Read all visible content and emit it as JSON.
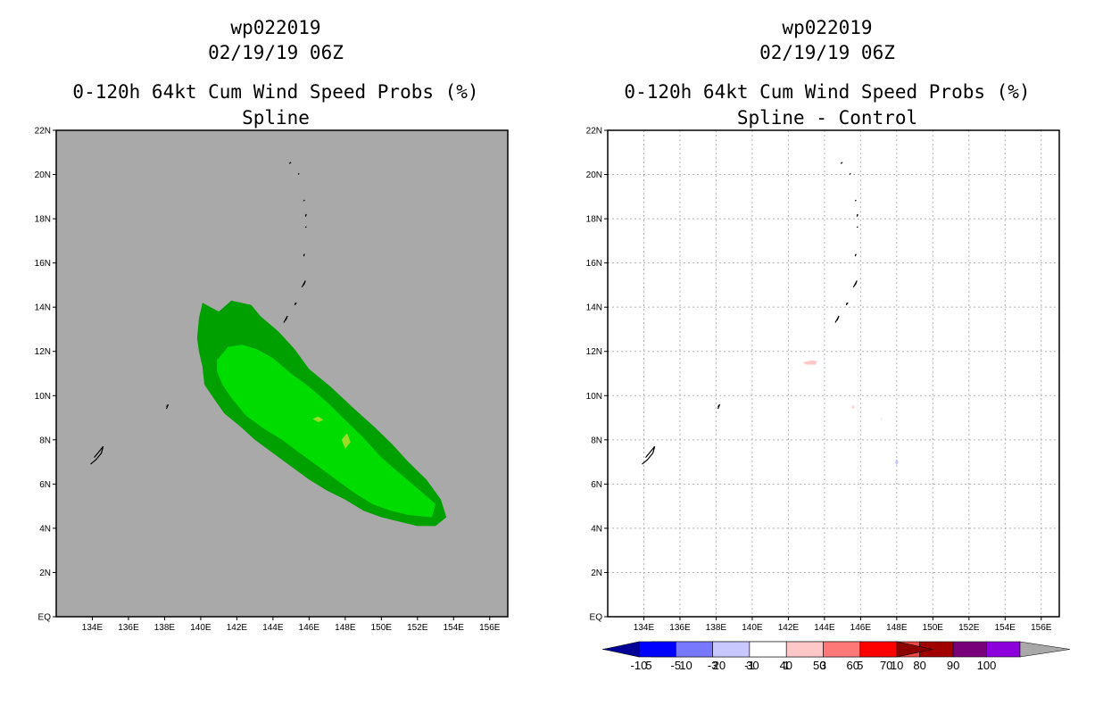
{
  "chart_data": [
    {
      "type": "contour-map",
      "title": "wp022019",
      "date": "02/19/19 06Z",
      "subtitle": "0-120h 64kt Cum Wind Speed Probs (%)",
      "method": "Spline",
      "xlim": [
        132,
        157
      ],
      "ylim": [
        0,
        22
      ],
      "xticks": [
        "134E",
        "136E",
        "138E",
        "140E",
        "142E",
        "144E",
        "146E",
        "148E",
        "150E",
        "152E",
        "154E",
        "156E"
      ],
      "xtick_values": [
        134,
        136,
        138,
        140,
        142,
        144,
        146,
        148,
        150,
        152,
        154,
        156
      ],
      "yticks": [
        "EQ",
        "2N",
        "4N",
        "6N",
        "8N",
        "10N",
        "12N",
        "14N",
        "16N",
        "18N",
        "20N",
        "22N"
      ],
      "ytick_values": [
        0,
        2,
        4,
        6,
        8,
        10,
        12,
        14,
        16,
        18,
        20,
        22
      ],
      "grid": false,
      "background": "#a9a9a9",
      "contours": [
        {
          "level": "5-10",
          "color": "#00a000",
          "points": [
            [
              139.8,
              12.6
            ],
            [
              139.9,
              13.5
            ],
            [
              140.1,
              14.2
            ],
            [
              141.0,
              13.8
            ],
            [
              141.7,
              14.3
            ],
            [
              142.8,
              14.1
            ],
            [
              143.3,
              13.6
            ],
            [
              144.3,
              12.9
            ],
            [
              145.2,
              12.1
            ],
            [
              146.0,
              11.2
            ],
            [
              147.2,
              10.4
            ],
            [
              148.5,
              9.4
            ],
            [
              149.6,
              8.6
            ],
            [
              150.6,
              7.8
            ],
            [
              151.5,
              7.0
            ],
            [
              152.5,
              6.2
            ],
            [
              153.3,
              5.3
            ],
            [
              153.6,
              4.5
            ],
            [
              153.0,
              4.1
            ],
            [
              152.0,
              4.1
            ],
            [
              151.0,
              4.3
            ],
            [
              150.0,
              4.5
            ],
            [
              149.0,
              4.8
            ],
            [
              148.0,
              5.3
            ],
            [
              147.0,
              5.7
            ],
            [
              146.0,
              6.2
            ],
            [
              145.0,
              6.8
            ],
            [
              144.0,
              7.4
            ],
            [
              143.0,
              8.0
            ],
            [
              142.2,
              8.6
            ],
            [
              141.3,
              9.2
            ],
            [
              140.7,
              9.9
            ],
            [
              140.2,
              10.5
            ],
            [
              140.1,
              11.3
            ],
            [
              139.9,
              12.0
            ]
          ]
        },
        {
          "level": "10-20",
          "color": "#00dc00",
          "points": [
            [
              140.9,
              11.6
            ],
            [
              141.5,
              12.2
            ],
            [
              142.3,
              12.3
            ],
            [
              143.1,
              12.1
            ],
            [
              144.0,
              11.7
            ],
            [
              145.0,
              11.0
            ],
            [
              146.0,
              10.4
            ],
            [
              147.0,
              9.7
            ],
            [
              148.0,
              8.9
            ],
            [
              149.0,
              8.1
            ],
            [
              150.0,
              7.2
            ],
            [
              151.0,
              6.5
            ],
            [
              152.0,
              5.8
            ],
            [
              153.0,
              5.1
            ],
            [
              152.8,
              4.5
            ],
            [
              151.5,
              4.6
            ],
            [
              150.5,
              4.8
            ],
            [
              149.5,
              5.1
            ],
            [
              148.5,
              5.6
            ],
            [
              147.5,
              6.2
            ],
            [
              146.5,
              6.8
            ],
            [
              145.5,
              7.4
            ],
            [
              144.5,
              8.0
            ],
            [
              143.5,
              8.5
            ],
            [
              142.5,
              9.1
            ],
            [
              141.7,
              9.9
            ],
            [
              141.2,
              10.5
            ],
            [
              140.9,
              11.1
            ]
          ]
        },
        {
          "level": "20-30",
          "color": "#9cdc28",
          "points": [
            [
              147.8,
              8.0
            ],
            [
              148.1,
              8.3
            ],
            [
              148.3,
              7.9
            ],
            [
              148.0,
              7.6
            ]
          ]
        },
        {
          "level": "20-30",
          "color": "#9cdc28",
          "points": [
            [
              146.2,
              8.95
            ],
            [
              146.5,
              9.05
            ],
            [
              146.8,
              8.9
            ],
            [
              146.5,
              8.8
            ]
          ]
        }
      ],
      "islands": [
        [
          [
            133.9,
            6.9
          ],
          [
            134.2,
            7.1
          ],
          [
            134.5,
            7.4
          ],
          [
            134.6,
            7.7
          ],
          [
            134.4,
            7.5
          ],
          [
            134.1,
            7.2
          ]
        ],
        [
          [
            138.1,
            9.4
          ],
          [
            138.2,
            9.6
          ],
          [
            138.1,
            9.5
          ]
        ],
        [
          [
            144.6,
            13.3
          ],
          [
            144.8,
            13.6
          ],
          [
            144.7,
            13.4
          ]
        ],
        [
          [
            145.2,
            14.1
          ],
          [
            145.3,
            14.2
          ],
          [
            145.2,
            14.15
          ]
        ],
        [
          [
            145.6,
            14.9
          ],
          [
            145.8,
            15.2
          ],
          [
            145.7,
            15.0
          ]
        ],
        [
          [
            145.7,
            16.3
          ],
          [
            145.75,
            16.4
          ],
          [
            145.7,
            16.35
          ]
        ],
        [
          [
            145.8,
            17.6
          ],
          [
            145.85,
            17.65
          ],
          [
            145.8,
            17.6
          ]
        ],
        [
          [
            145.8,
            18.1
          ],
          [
            145.85,
            18.2
          ],
          [
            145.8,
            18.15
          ]
        ],
        [
          [
            145.7,
            18.8
          ],
          [
            145.75,
            18.85
          ],
          [
            145.7,
            18.8
          ]
        ],
        [
          [
            144.9,
            20.5
          ],
          [
            145.0,
            20.55
          ],
          [
            144.9,
            20.5
          ]
        ],
        [
          [
            145.4,
            20.0
          ],
          [
            145.45,
            20.05
          ],
          [
            145.4,
            20.0
          ]
        ]
      ],
      "colorbar": {
        "labels": [
          "5",
          "10",
          "20",
          "30",
          "40",
          "50",
          "60",
          "70",
          "80",
          "90",
          "100"
        ],
        "colors": [
          "#00a000",
          "#00dc00",
          "#9cdc28",
          "#e6e632",
          "#dcdc32",
          "#e6b432",
          "#e68228",
          "#f04646",
          "#a00000",
          "#780078",
          "#8c00dc"
        ],
        "left_arrow_color": "#a9a9a9",
        "right_arrow_color": "#a9a9a9"
      }
    },
    {
      "type": "contour-map",
      "title": "wp022019",
      "date": "02/19/19 06Z",
      "subtitle": "0-120h 64kt Cum Wind Speed Probs (%)",
      "method": "Spline - Control",
      "xlim": [
        132,
        157
      ],
      "ylim": [
        0,
        22
      ],
      "xticks": [
        "134E",
        "136E",
        "138E",
        "140E",
        "142E",
        "144E",
        "146E",
        "148E",
        "150E",
        "152E",
        "154E",
        "156E"
      ],
      "xtick_values": [
        134,
        136,
        138,
        140,
        142,
        144,
        146,
        148,
        150,
        152,
        154,
        156
      ],
      "yticks": [
        "EQ",
        "2N",
        "4N",
        "6N",
        "8N",
        "10N",
        "12N",
        "14N",
        "16N",
        "18N",
        "20N",
        "22N"
      ],
      "ytick_values": [
        0,
        2,
        4,
        6,
        8,
        10,
        12,
        14,
        16,
        18,
        20,
        22
      ],
      "grid": true,
      "background": "#ffffff",
      "contours": [
        {
          "level": "1-3",
          "color": "#ffc8c8",
          "points": [
            [
              142.8,
              11.5
            ],
            [
              143.3,
              11.6
            ],
            [
              143.6,
              11.55
            ],
            [
              143.5,
              11.4
            ],
            [
              143.0,
              11.4
            ]
          ]
        },
        {
          "level": "1-3",
          "color": "#ffc8c8",
          "points": [
            [
              145.5,
              9.45
            ],
            [
              145.6,
              9.6
            ],
            [
              145.65,
              9.4
            ]
          ]
        },
        {
          "level": "1-3",
          "color": "#ffc8c8",
          "points": [
            [
              147.1,
              8.95
            ],
            [
              147.2,
              9.0
            ],
            [
              147.15,
              8.9
            ]
          ]
        },
        {
          "level": "-3--1",
          "color": "#c8c8ff",
          "points": [
            [
              147.9,
              7.0
            ],
            [
              148.0,
              7.15
            ],
            [
              148.1,
              7.0
            ],
            [
              148.0,
              6.85
            ]
          ]
        }
      ],
      "islands": [
        [
          [
            133.9,
            6.9
          ],
          [
            134.2,
            7.1
          ],
          [
            134.5,
            7.4
          ],
          [
            134.6,
            7.7
          ],
          [
            134.4,
            7.5
          ],
          [
            134.1,
            7.2
          ]
        ],
        [
          [
            138.1,
            9.4
          ],
          [
            138.2,
            9.6
          ],
          [
            138.1,
            9.5
          ]
        ],
        [
          [
            144.6,
            13.3
          ],
          [
            144.8,
            13.6
          ],
          [
            144.7,
            13.4
          ]
        ],
        [
          [
            145.2,
            14.1
          ],
          [
            145.3,
            14.2
          ],
          [
            145.2,
            14.15
          ]
        ],
        [
          [
            145.6,
            14.9
          ],
          [
            145.8,
            15.2
          ],
          [
            145.7,
            15.0
          ]
        ],
        [
          [
            145.7,
            16.3
          ],
          [
            145.75,
            16.4
          ],
          [
            145.7,
            16.35
          ]
        ],
        [
          [
            145.8,
            17.6
          ],
          [
            145.85,
            17.65
          ],
          [
            145.8,
            17.6
          ]
        ],
        [
          [
            145.8,
            18.1
          ],
          [
            145.85,
            18.2
          ],
          [
            145.8,
            18.15
          ]
        ],
        [
          [
            145.7,
            18.8
          ],
          [
            145.75,
            18.85
          ],
          [
            145.7,
            18.8
          ]
        ],
        [
          [
            144.9,
            20.5
          ],
          [
            145.0,
            20.55
          ],
          [
            144.9,
            20.5
          ]
        ],
        [
          [
            145.4,
            20.0
          ],
          [
            145.45,
            20.05
          ],
          [
            145.4,
            20.0
          ]
        ]
      ],
      "colorbar": {
        "labels": [
          "-10",
          "-5",
          "-3",
          "-1",
          "1",
          "3",
          "5",
          "10"
        ],
        "colors": [
          "#0000ff",
          "#7878ff",
          "#c8c8ff",
          "#ffffff",
          "#ffc8c8",
          "#ff7878",
          "#ff0000"
        ],
        "left_arrow_color": "#000096",
        "right_arrow_color": "#8c0000"
      }
    }
  ]
}
